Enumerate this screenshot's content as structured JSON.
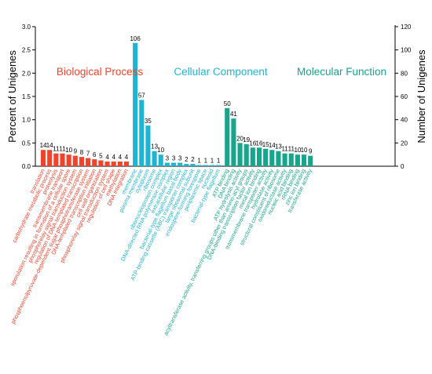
{
  "chart_data": {
    "type": "bar",
    "ylabel_left": "Percent of Unigenes",
    "ylabel_right": "Number of Unigenes",
    "left_ticks": [
      "0.0",
      "0.5",
      "1.0",
      "1.5",
      "2.0",
      "2.5",
      "3.0"
    ],
    "right_ticks": [
      "0",
      "20",
      "40",
      "60",
      "80",
      "100",
      "120"
    ],
    "ylim_right": [
      0,
      120
    ],
    "ylim_left": [
      0,
      3.0
    ],
    "groups": [
      {
        "name": "Biological Process",
        "color": "#f0432b",
        "categories": [
          "translation",
          "carbohydrate metabolic process",
          "proteolysis",
          "transmembrane transport",
          "sporulation resulting in formation of a cellular spore",
          "phosphorelay signal transduction system",
          "regulation of DNA-templated transcription",
          "phosphoenolpyruvate-dependent sugar phosphotransferase system",
          "DNA-templated transcription initiation",
          "cell wall organization",
          "phosphorelay signal transduction system",
          "regulation of cell shape",
          "methylation",
          "DNA integration"
        ],
        "values": [
          14,
          14,
          11,
          11,
          10,
          9,
          8,
          7,
          6,
          5,
          4,
          4,
          4,
          4
        ]
      },
      {
        "name": "Cellular Component",
        "color": "#1fb5d2",
        "categories": [
          "membrane",
          "plasma membrane",
          "cytoplasm",
          "ribosome",
          "ribonucleoprotein complex",
          "DNA-directed RNA polymerase complex",
          "extracellular region",
          "bacterial-type flagellum basal body",
          "ATP-binding cassette (ABC) transporter complex",
          "large ribosomal subunit",
          "endospore-forming forespore",
          "periplasmic space",
          "nucleoid",
          "bacterial-type flagellum"
        ],
        "values": [
          106,
          57,
          35,
          13,
          10,
          3,
          3,
          3,
          2,
          2,
          1,
          1,
          1,
          1
        ]
      },
      {
        "name": "Molecular Function",
        "color": "#17a58c",
        "categories": [
          "ATP binding",
          "DNA binding",
          "ATP hydrolysis activity",
          "acyltransferase activity, transferring groups other than amino-acyl groups",
          "DNA-binding transcription factor activity",
          "metal ion binding",
          "transmembrane transporter activity",
          "hydrolase activity",
          "structural constituent of ribosome",
          "oxidoreductase activity",
          "nucleic acid binding",
          "rRNA binding",
          "zinc ion binding",
          "transferase activity"
        ],
        "values": [
          50,
          41,
          20,
          19,
          16,
          16,
          15,
          14,
          13,
          11,
          11,
          10,
          10,
          9
        ]
      }
    ],
    "grid": false,
    "legend": "none"
  }
}
